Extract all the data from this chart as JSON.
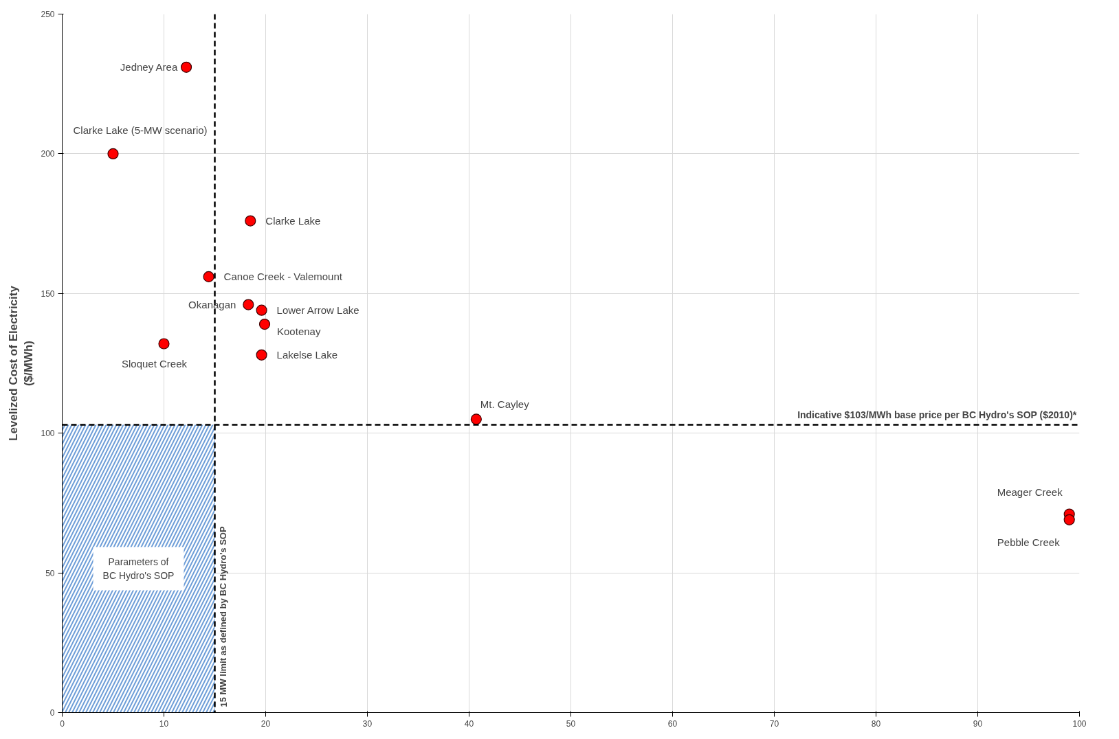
{
  "chart_data": {
    "type": "scatter",
    "ylabel": "Levelized Cost of Electricity\n($/MWh)",
    "x": [
      12.2,
      5.0,
      18.5,
      14.4,
      18.3,
      19.6,
      19.9,
      19.6,
      10.0,
      40.7,
      99.0,
      99.0
    ],
    "series": [
      {
        "color": "#ff0000",
        "values": [
          231,
          200,
          176,
          156,
          146,
          144,
          139,
          128,
          132,
          105,
          71,
          69
        ]
      }
    ],
    "xlim": [
      0,
      100
    ],
    "ylim": [
      0,
      250
    ],
    "xticks": [
      0,
      10,
      20,
      30,
      40,
      50,
      60,
      70,
      80,
      90,
      100
    ],
    "yticks": [
      0,
      50,
      100,
      150,
      200,
      250
    ],
    "grid": true,
    "marker": "circle",
    "ref_lines": [
      {
        "axis": "x",
        "value": 15,
        "label": "15 MW limit as defined by BC Hydro's SOP",
        "line_style": "dashed",
        "color": "#000000"
      },
      {
        "axis": "y",
        "value": 103,
        "label": "Indicative $103/MWh base price per BC Hydro's SOP ($2010)*",
        "line_style": "dashed",
        "color": "#000000"
      }
    ],
    "bands": [
      {
        "axis": "x",
        "from": 0,
        "to": 15,
        "label": "Parameters of\nBC Hydro's SOP",
        "color": "#6e9ed8"
      }
    ],
    "annotations": [
      {
        "text": "Jedney Area",
        "x": 12.2,
        "y": 231
      },
      {
        "text": "Clarke Lake (5-MW scenario)",
        "x": 5.0,
        "y": 200
      },
      {
        "text": "Clarke Lake",
        "x": 18.5,
        "y": 176
      },
      {
        "text": "Canoe Creek - Valemount",
        "x": 14.4,
        "y": 156
      },
      {
        "text": "Okanagan",
        "x": 18.3,
        "y": 146
      },
      {
        "text": "Lower Arrow Lake",
        "x": 19.6,
        "y": 144
      },
      {
        "text": "Kootenay",
        "x": 19.9,
        "y": 139
      },
      {
        "text": "Lakelse Lake",
        "x": 19.6,
        "y": 128
      },
      {
        "text": "Sloquet Creek",
        "x": 10.0,
        "y": 132
      },
      {
        "text": "Mt. Cayley",
        "x": 40.7,
        "y": 105
      },
      {
        "text": "Meager Creek",
        "x": 99.0,
        "y": 71
      },
      {
        "text": "Pebble Creek",
        "x": 99.0,
        "y": 69
      }
    ]
  }
}
